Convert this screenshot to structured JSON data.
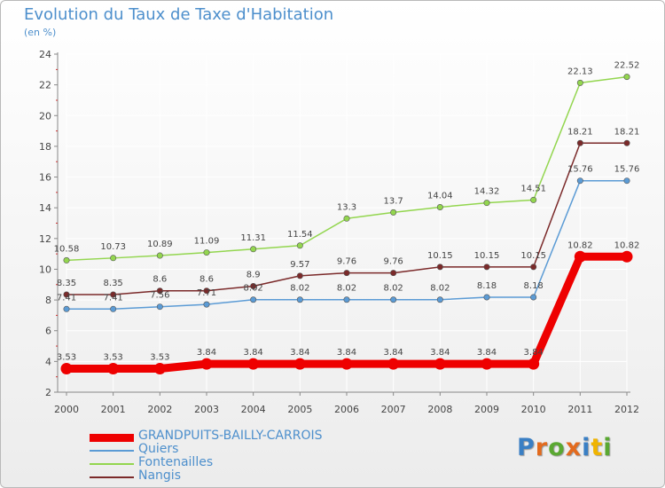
{
  "header": {
    "title": "Evolution du Taux de Taxe d'Habitation",
    "subtitle": "(en %)"
  },
  "logo": {
    "text": "Proxiti"
  },
  "colors": {
    "title": "#4d8fcc",
    "axis": "#888888",
    "grid": "#ffffff"
  },
  "chart_data": {
    "type": "line",
    "title": "Evolution du Taux de Taxe d'Habitation",
    "subtitle": "(en %)",
    "xlabel": "",
    "ylabel": "",
    "ylim": [
      2,
      24
    ],
    "yticks": [
      2,
      4,
      6,
      8,
      10,
      12,
      14,
      16,
      18,
      20,
      22,
      24
    ],
    "x": [
      "2000",
      "2001",
      "2002",
      "2003",
      "2004",
      "2005",
      "2006",
      "2007",
      "2008",
      "2009",
      "2010",
      "2011",
      "2012"
    ],
    "legend_position": "bottom-left",
    "series": [
      {
        "name": "Fontenailles",
        "color": "#93d64f",
        "values": [
          10.58,
          10.73,
          10.89,
          11.09,
          11.31,
          11.54,
          13.3,
          13.7,
          14.04,
          14.32,
          14.51,
          22.13,
          22.52
        ],
        "labels": [
          "10.58",
          "10.73",
          "10.89",
          "11.09",
          "11.31",
          "11.54",
          "13.3",
          "13.7",
          "14.04",
          "14.32",
          "14.51",
          "22.13",
          "22.52"
        ]
      },
      {
        "name": "Nangis",
        "color": "#7b2a2a",
        "values": [
          8.35,
          8.35,
          8.6,
          8.6,
          8.9,
          9.57,
          9.76,
          9.76,
          10.15,
          10.15,
          10.15,
          18.21,
          18.21
        ],
        "labels": [
          "8.35",
          "8.35",
          "8.6",
          "8.6",
          "8.9",
          "9.57",
          "9.76",
          "9.76",
          "10.15",
          "10.15",
          "10.15",
          "18.21",
          "18.21"
        ]
      },
      {
        "name": "Quiers",
        "color": "#5b9bd5",
        "values": [
          7.41,
          7.41,
          7.56,
          7.71,
          8.02,
          8.02,
          8.02,
          8.02,
          8.02,
          8.18,
          8.18,
          15.76,
          15.76
        ],
        "labels": [
          "7.41",
          "7.41",
          "7.56",
          "7.71",
          "8.02",
          "8.02",
          "8.02",
          "8.02",
          "8.02",
          "8.18",
          "8.18",
          "15.76",
          "15.76"
        ]
      },
      {
        "name": "GRANDPUITS-BAILLY-CARROIS",
        "color": "#ee0000",
        "values": [
          3.53,
          3.53,
          3.53,
          3.84,
          3.84,
          3.84,
          3.84,
          3.84,
          3.84,
          3.84,
          3.84,
          10.82,
          10.82
        ],
        "labels": [
          "3.53",
          "3.53",
          "3.53",
          "3.84",
          "3.84",
          "3.84",
          "3.84",
          "3.84",
          "3.84",
          "3.84",
          "3.84",
          "10.82",
          "10.82"
        ]
      }
    ],
    "legend_order": [
      "GRANDPUITS-BAILLY-CARROIS",
      "Quiers",
      "Fontenailles",
      "Nangis"
    ]
  }
}
